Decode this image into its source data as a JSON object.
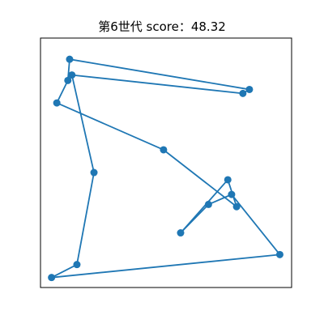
{
  "chart_data": {
    "type": "line",
    "title": "第6世代 score：48.32",
    "xlabel": "",
    "ylabel": "",
    "xlim": [
      0,
      1
    ],
    "ylim": [
      0,
      1
    ],
    "axes_visible": false,
    "grid": false,
    "legend": "none",
    "closed_path": true,
    "series": [
      {
        "color": "#1f77b4",
        "x": [
          0.116,
          0.109,
          0.065,
          0.49,
          0.781,
          0.746,
          0.558,
          0.669,
          0.761,
          0.953,
          0.044,
          0.145,
          0.213,
          0.125,
          0.806,
          0.832
        ],
        "y": [
          0.915,
          0.83,
          0.74,
          0.552,
          0.324,
          0.432,
          0.219,
          0.333,
          0.373,
          0.132,
          0.04,
          0.092,
          0.461,
          0.852,
          0.778,
          0.794
        ]
      }
    ]
  }
}
